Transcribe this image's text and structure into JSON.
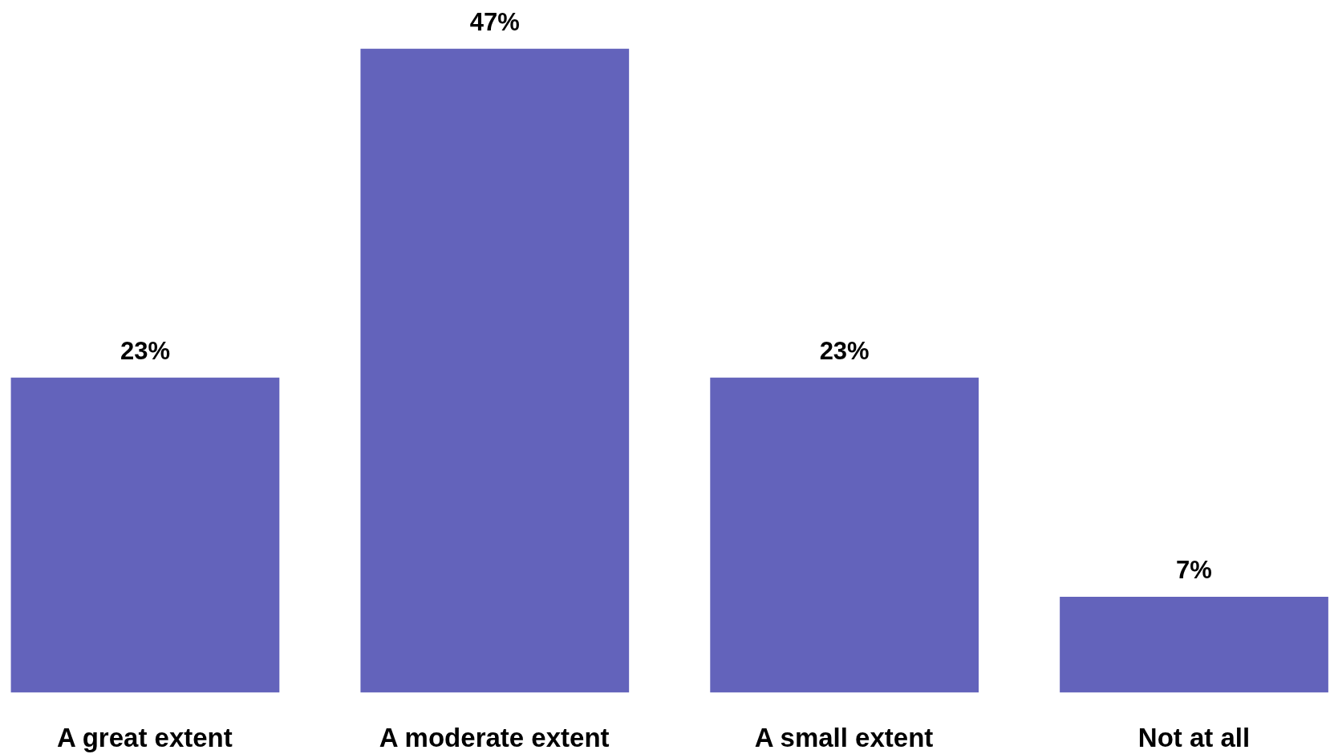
{
  "chart_data": {
    "type": "bar",
    "categories": [
      "A great extent",
      "A moderate extent",
      "A small extent",
      "Not at all"
    ],
    "values": [
      23,
      47,
      23,
      7
    ],
    "value_labels": [
      "23%",
      "47%",
      "23%",
      "7%"
    ],
    "color": "#6363bb"
  }
}
